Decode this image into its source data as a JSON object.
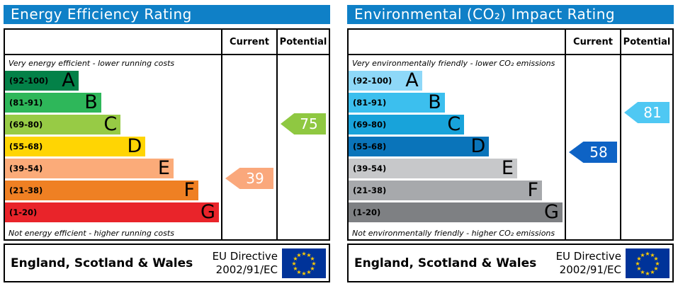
{
  "header_color": "#0f80c7",
  "eu_flag": {
    "background": "#003399",
    "star_color": "#ffcc00",
    "star_count": 12
  },
  "panels": [
    {
      "title": "Energy Efficiency Rating",
      "columns": {
        "current": "Current",
        "potential": "Potential"
      },
      "top_note": "Very energy efficient - lower running costs",
      "bottom_note": "Not energy efficient - higher running costs",
      "bands": [
        {
          "letter": "A",
          "range_label": "(92-100)",
          "low": 92,
          "high": 100,
          "color": "#038148",
          "width_pct": 34
        },
        {
          "letter": "B",
          "range_label": "(81-91)",
          "low": 81,
          "high": 91,
          "color": "#2eb75a",
          "width_pct": 44.5
        },
        {
          "letter": "C",
          "range_label": "(69-80)",
          "low": 69,
          "high": 80,
          "color": "#97cb45",
          "width_pct": 53.5
        },
        {
          "letter": "D",
          "range_label": "(55-68)",
          "low": 55,
          "high": 68,
          "color": "#ffd503",
          "width_pct": 65
        },
        {
          "letter": "E",
          "range_label": "(39-54)",
          "low": 39,
          "high": 54,
          "color": "#fbab79",
          "width_pct": 78
        },
        {
          "letter": "F",
          "range_label": "(21-38)",
          "low": 21,
          "high": 38,
          "color": "#ef8023",
          "width_pct": 89.5
        },
        {
          "letter": "G",
          "range_label": "(1-20)",
          "low": 1,
          "high": 20,
          "color": "#e9242a",
          "width_pct": 99
        }
      ],
      "current": {
        "value": 39,
        "color": "#faa87c"
      },
      "potential": {
        "value": 75,
        "color": "#8fc841"
      },
      "footer": {
        "region": "England, Scotland & Wales",
        "directive_line1": "EU Directive",
        "directive_line2": "2002/91/EC"
      }
    },
    {
      "title": "Environmental (CO₂) Impact Rating",
      "columns": {
        "current": "Current",
        "potential": "Potential"
      },
      "top_note": "Very environmentally friendly - lower CO₂ emissions",
      "bottom_note": "Not environmentally friendly - higher CO₂ emissions",
      "bands": [
        {
          "letter": "A",
          "range_label": "(92-100)",
          "low": 92,
          "high": 100,
          "color": "#8ed8f8",
          "width_pct": 34
        },
        {
          "letter": "B",
          "range_label": "(81-91)",
          "low": 81,
          "high": 91,
          "color": "#3cbfee",
          "width_pct": 44.5
        },
        {
          "letter": "C",
          "range_label": "(69-80)",
          "low": 69,
          "high": 80,
          "color": "#18a3da",
          "width_pct": 53.5
        },
        {
          "letter": "D",
          "range_label": "(55-68)",
          "low": 55,
          "high": 68,
          "color": "#0a74ba",
          "width_pct": 65
        },
        {
          "letter": "E",
          "range_label": "(39-54)",
          "low": 39,
          "high": 54,
          "color": "#c7c8ca",
          "width_pct": 78
        },
        {
          "letter": "F",
          "range_label": "(21-38)",
          "low": 21,
          "high": 38,
          "color": "#a7a9ac",
          "width_pct": 89.5
        },
        {
          "letter": "G",
          "range_label": "(1-20)",
          "low": 1,
          "high": 20,
          "color": "#7e8083",
          "width_pct": 99
        }
      ],
      "current": {
        "value": 58,
        "color": "#0e63c5"
      },
      "potential": {
        "value": 81,
        "color": "#4fc8f3"
      },
      "footer": {
        "region": "England, Scotland & Wales",
        "directive_line1": "EU Directive",
        "directive_line2": "2002/91/EC"
      }
    }
  ],
  "chart_data": [
    {
      "type": "bar",
      "title": "Energy Efficiency Rating",
      "orientation": "horizontal",
      "categories": [
        "A (92-100)",
        "B (81-91)",
        "C (69-80)",
        "D (55-68)",
        "E (39-54)",
        "F (21-38)",
        "G (1-20)"
      ],
      "values": [
        34,
        44.5,
        53.5,
        65,
        78,
        89.5,
        99
      ],
      "values_note": "bar lengths as % of band column width",
      "bar_colors": [
        "#038148",
        "#2eb75a",
        "#97cb45",
        "#ffd503",
        "#fbab79",
        "#ef8023",
        "#e9242a"
      ],
      "markers": [
        {
          "name": "Current",
          "value": 39,
          "band": "E",
          "color": "#faa87c"
        },
        {
          "name": "Potential",
          "value": 75,
          "band": "C",
          "color": "#8fc841"
        }
      ],
      "annotations": [
        "Very energy efficient - lower running costs",
        "Not energy efficient - higher running costs"
      ],
      "footer": "England, Scotland & Wales — EU Directive 2002/91/EC"
    },
    {
      "type": "bar",
      "title": "Environmental (CO₂) Impact Rating",
      "orientation": "horizontal",
      "categories": [
        "A (92-100)",
        "B (81-91)",
        "C (69-80)",
        "D (55-68)",
        "E (39-54)",
        "F (21-38)",
        "G (1-20)"
      ],
      "values": [
        34,
        44.5,
        53.5,
        65,
        78,
        89.5,
        99
      ],
      "values_note": "bar lengths as % of band column width",
      "bar_colors": [
        "#8ed8f8",
        "#3cbfee",
        "#18a3da",
        "#0a74ba",
        "#c7c8ca",
        "#a7a9ac",
        "#7e8083"
      ],
      "markers": [
        {
          "name": "Current",
          "value": 58,
          "band": "D",
          "color": "#0e63c5"
        },
        {
          "name": "Potential",
          "value": 81,
          "band": "B",
          "color": "#4fc8f3"
        }
      ],
      "annotations": [
        "Very environmentally friendly - lower CO₂ emissions",
        "Not environmentally friendly - higher CO₂ emissions"
      ],
      "footer": "England, Scotland & Wales — EU Directive 2002/91/EC"
    }
  ]
}
